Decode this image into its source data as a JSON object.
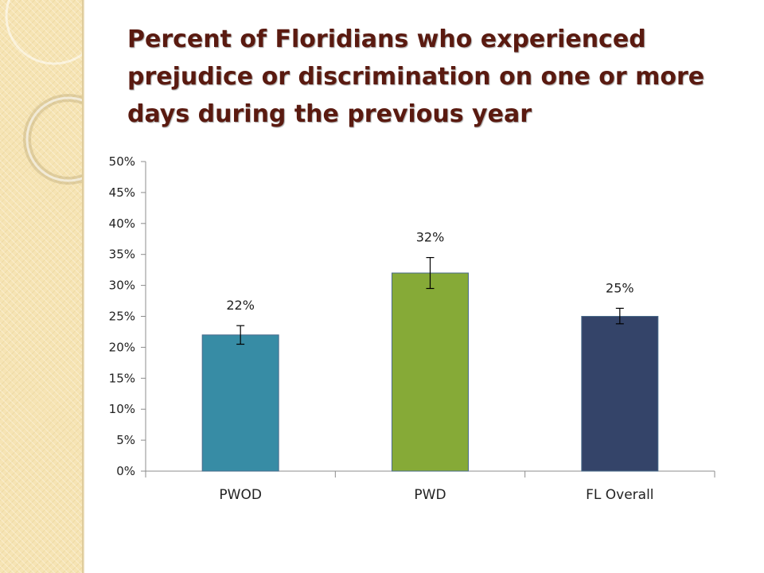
{
  "slide": {
    "title": "Percent of Floridians who experienced prejudice or discrimination on one or more days during the previous year",
    "title_color": "#5a1a10",
    "side_panel_color": "#f6e4b4"
  },
  "chart_data": {
    "type": "bar",
    "title": "",
    "xlabel": "",
    "ylabel": "",
    "categories": [
      "PWOD",
      "PWD",
      "FL Overall"
    ],
    "values": [
      22,
      32,
      25
    ],
    "value_labels": [
      "22%",
      "32%",
      "25%"
    ],
    "error_bars": [
      {
        "low": 20.5,
        "high": 23.5
      },
      {
        "low": 29.5,
        "high": 34.5
      },
      {
        "low": 23.8,
        "high": 26.3
      }
    ],
    "colors": [
      "#378ca5",
      "#86aa37",
      "#344469"
    ],
    "ylim": [
      0,
      50
    ],
    "yticks": [
      0,
      5,
      10,
      15,
      20,
      25,
      30,
      35,
      40,
      45,
      50
    ],
    "ytick_labels": [
      "0%",
      "5%",
      "10%",
      "15%",
      "20%",
      "25%",
      "30%",
      "35%",
      "40%",
      "45%",
      "50%"
    ],
    "grid": false,
    "legend": "none"
  }
}
